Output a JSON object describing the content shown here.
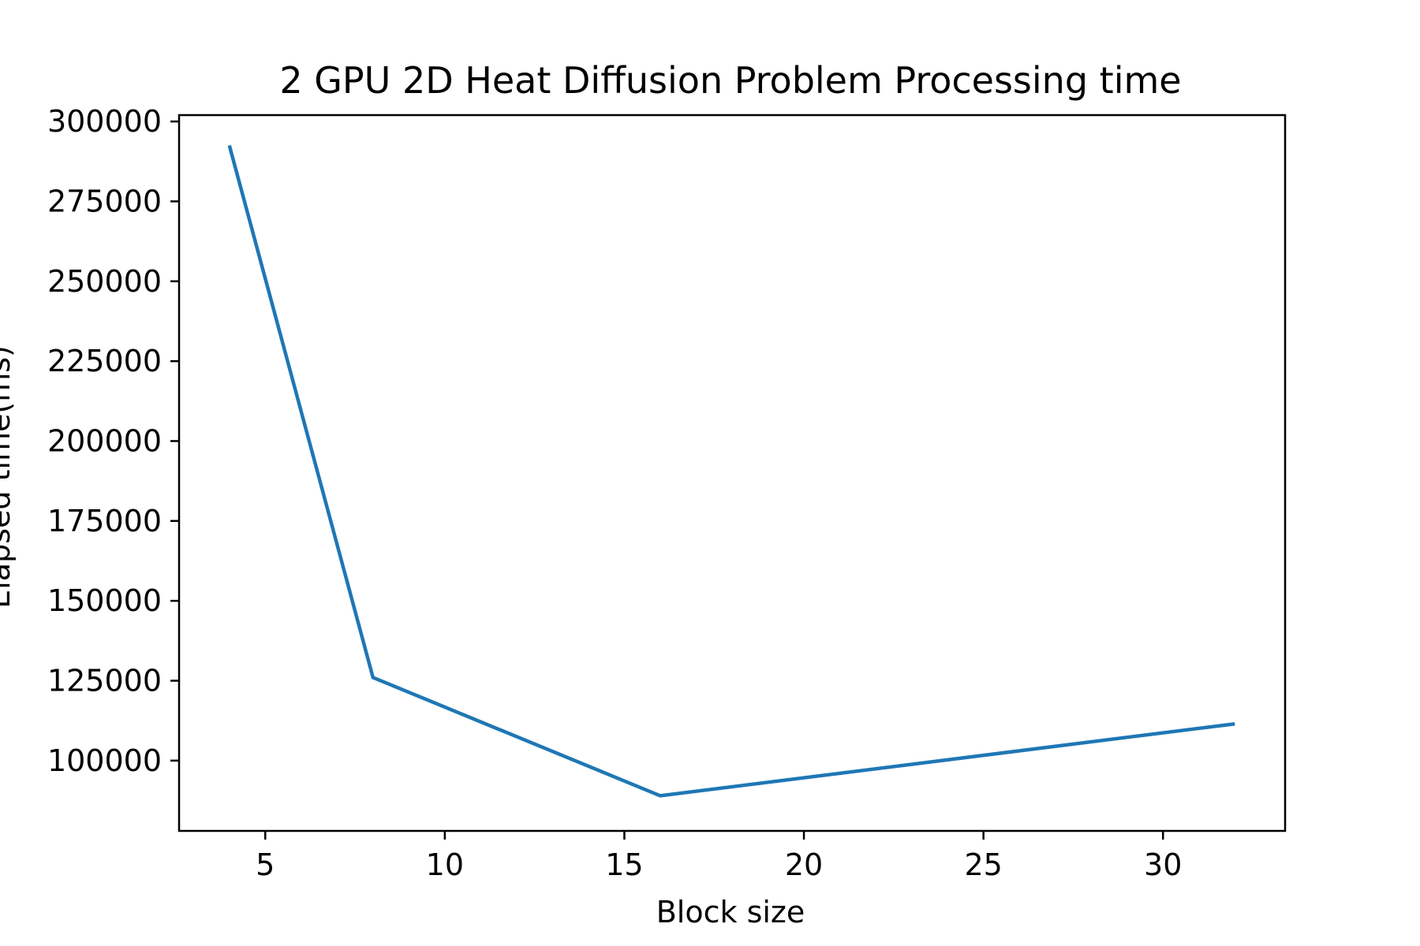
{
  "chart_data": {
    "type": "line",
    "title": "2 GPU 2D Heat Diffusion Problem Processing time",
    "xlabel": "Block size",
    "ylabel": "Elapsed time(ms)",
    "xlim": [
      2.6,
      33.4
    ],
    "ylim": [
      78000,
      302000
    ],
    "xticks": [
      5,
      10,
      15,
      20,
      25,
      30
    ],
    "yticks": [
      100000,
      125000,
      150000,
      175000,
      200000,
      225000,
      250000,
      275000,
      300000
    ],
    "grid": false,
    "legend": "none",
    "series": [
      {
        "color": "#1f77b4",
        "x": [
          4,
          8,
          16,
          32
        ],
        "y": [
          292500,
          126000,
          89000,
          111500
        ]
      }
    ]
  }
}
